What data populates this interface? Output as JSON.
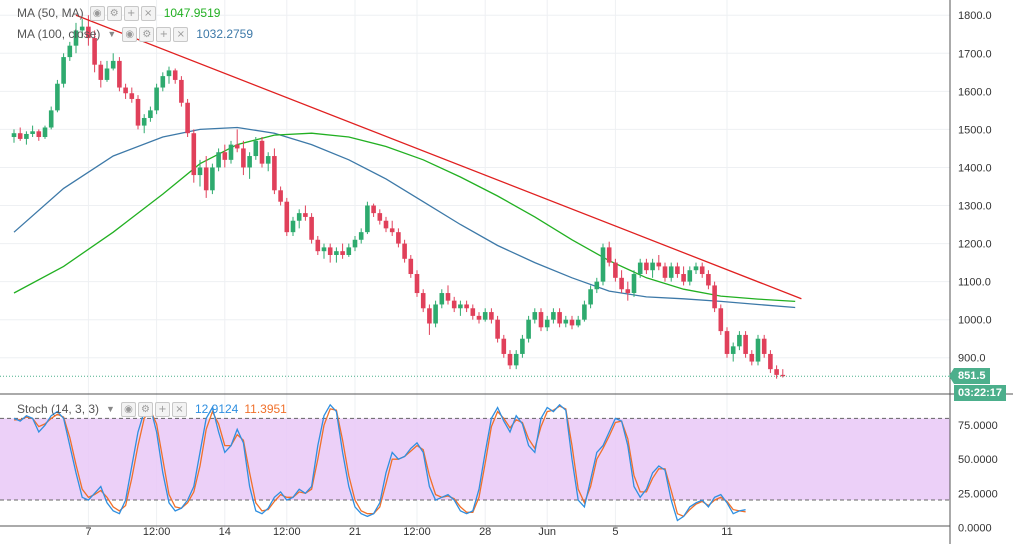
{
  "legend": {
    "ma50": {
      "label": "MA (50, MA)",
      "value": "1047.9519",
      "color": "#22b022"
    },
    "ma100": {
      "label": "MA (100, close)",
      "value": "1032.2759",
      "color": "#3d79a8"
    },
    "stoch": {
      "label": "Stoch (14, 3, 3)",
      "k_value": "12.9124",
      "d_value": "11.3951",
      "k_color": "#2f8fe0",
      "d_color": "#f0702a"
    }
  },
  "price_badge": {
    "value": "851.5",
    "countdown": "03:22:17",
    "color": "#4caf8c"
  },
  "colors": {
    "up": "#2eaa6e",
    "down": "#e0405a",
    "trendline": "#e02020",
    "stoch_band": "#e9c8f7",
    "axis_text": "#333333"
  },
  "chart_data": [
    {
      "type": "candlestick",
      "title": "",
      "ylim": [
        810,
        1840
      ],
      "y_ticks": [
        "1800.0",
        "1700.0",
        "1600.0",
        "1500.0",
        "1400.0",
        "1300.0",
        "1200.0",
        "1100.0",
        "1000.0",
        "900.0"
      ],
      "y_tick_values": [
        1800,
        1700,
        1600,
        1500,
        1400,
        1300,
        1200,
        1100,
        1000,
        900
      ],
      "x_ticks": [
        {
          "label": "7",
          "index": 12
        },
        {
          "label": "12:00",
          "index": 23
        },
        {
          "label": "14",
          "index": 34
        },
        {
          "label": "12:00",
          "index": 44
        },
        {
          "label": "21",
          "index": 55
        },
        {
          "label": "12:00",
          "index": 65
        },
        {
          "label": "28",
          "index": 76
        },
        {
          "label": "Jun",
          "index": 86
        },
        {
          "label": "5",
          "index": 97
        },
        {
          "label": "11",
          "index": 115
        }
      ],
      "last_price": 851.5,
      "candles": [
        [
          1480,
          1500,
          1465,
          1490
        ],
        [
          1490,
          1505,
          1470,
          1475
        ],
        [
          1475,
          1495,
          1460,
          1488
        ],
        [
          1488,
          1510,
          1480,
          1495
        ],
        [
          1495,
          1500,
          1470,
          1480
        ],
        [
          1480,
          1510,
          1475,
          1505
        ],
        [
          1505,
          1560,
          1500,
          1550
        ],
        [
          1550,
          1630,
          1545,
          1620
        ],
        [
          1620,
          1700,
          1610,
          1690
        ],
        [
          1690,
          1730,
          1680,
          1720
        ],
        [
          1720,
          1780,
          1700,
          1760
        ],
        [
          1760,
          1790,
          1740,
          1770
        ],
        [
          1770,
          1800,
          1720,
          1740
        ],
        [
          1740,
          1760,
          1650,
          1670
        ],
        [
          1670,
          1680,
          1610,
          1630
        ],
        [
          1630,
          1680,
          1625,
          1660
        ],
        [
          1660,
          1700,
          1655,
          1680
        ],
        [
          1680,
          1690,
          1600,
          1610
        ],
        [
          1610,
          1620,
          1580,
          1595
        ],
        [
          1595,
          1610,
          1570,
          1580
        ],
        [
          1580,
          1590,
          1500,
          1510
        ],
        [
          1510,
          1540,
          1490,
          1530
        ],
        [
          1530,
          1560,
          1520,
          1550
        ],
        [
          1550,
          1620,
          1540,
          1610
        ],
        [
          1610,
          1650,
          1600,
          1640
        ],
        [
          1640,
          1665,
          1620,
          1655
        ],
        [
          1655,
          1660,
          1620,
          1630
        ],
        [
          1630,
          1640,
          1560,
          1570
        ],
        [
          1570,
          1580,
          1480,
          1490
        ],
        [
          1490,
          1500,
          1360,
          1380
        ],
        [
          1380,
          1420,
          1350,
          1400
        ],
        [
          1400,
          1430,
          1320,
          1340
        ],
        [
          1340,
          1410,
          1330,
          1400
        ],
        [
          1400,
          1450,
          1390,
          1440
        ],
        [
          1440,
          1460,
          1400,
          1420
        ],
        [
          1420,
          1470,
          1410,
          1460
        ],
        [
          1460,
          1500,
          1440,
          1450
        ],
        [
          1450,
          1470,
          1380,
          1400
        ],
        [
          1400,
          1440,
          1370,
          1430
        ],
        [
          1430,
          1480,
          1420,
          1470
        ],
        [
          1470,
          1480,
          1400,
          1410
        ],
        [
          1410,
          1440,
          1390,
          1430
        ],
        [
          1430,
          1450,
          1330,
          1340
        ],
        [
          1340,
          1350,
          1300,
          1310
        ],
        [
          1310,
          1320,
          1220,
          1230
        ],
        [
          1230,
          1270,
          1220,
          1260
        ],
        [
          1260,
          1290,
          1240,
          1280
        ],
        [
          1280,
          1300,
          1260,
          1270
        ],
        [
          1270,
          1280,
          1200,
          1210
        ],
        [
          1210,
          1220,
          1170,
          1180
        ],
        [
          1180,
          1200,
          1160,
          1190
        ],
        [
          1190,
          1200,
          1150,
          1170
        ],
        [
          1170,
          1190,
          1150,
          1180
        ],
        [
          1180,
          1200,
          1160,
          1170
        ],
        [
          1170,
          1200,
          1165,
          1190
        ],
        [
          1190,
          1220,
          1180,
          1210
        ],
        [
          1210,
          1240,
          1200,
          1230
        ],
        [
          1230,
          1310,
          1225,
          1300
        ],
        [
          1300,
          1305,
          1270,
          1280
        ],
        [
          1280,
          1290,
          1250,
          1260
        ],
        [
          1260,
          1270,
          1230,
          1240
        ],
        [
          1240,
          1260,
          1220,
          1230
        ],
        [
          1230,
          1240,
          1190,
          1200
        ],
        [
          1200,
          1210,
          1150,
          1160
        ],
        [
          1160,
          1170,
          1110,
          1120
        ],
        [
          1120,
          1130,
          1060,
          1070
        ],
        [
          1070,
          1080,
          1020,
          1030
        ],
        [
          1030,
          1040,
          960,
          990
        ],
        [
          990,
          1050,
          980,
          1040
        ],
        [
          1040,
          1080,
          1030,
          1070
        ],
        [
          1070,
          1090,
          1040,
          1050
        ],
        [
          1050,
          1060,
          1020,
          1030
        ],
        [
          1030,
          1050,
          1010,
          1040
        ],
        [
          1040,
          1050,
          1020,
          1030
        ],
        [
          1030,
          1040,
          1000,
          1010
        ],
        [
          1010,
          1020,
          990,
          1000
        ],
        [
          1000,
          1030,
          995,
          1020
        ],
        [
          1020,
          1030,
          990,
          1000
        ],
        [
          1000,
          1010,
          940,
          950
        ],
        [
          950,
          960,
          900,
          910
        ],
        [
          910,
          920,
          870,
          880
        ],
        [
          880,
          920,
          870,
          910
        ],
        [
          910,
          960,
          900,
          950
        ],
        [
          950,
          1010,
          940,
          1000
        ],
        [
          1000,
          1030,
          990,
          1020
        ],
        [
          1020,
          1030,
          970,
          980
        ],
        [
          980,
          1010,
          970,
          1000
        ],
        [
          1000,
          1030,
          990,
          1020
        ],
        [
          1020,
          1030,
          980,
          990
        ],
        [
          990,
          1010,
          980,
          1000
        ],
        [
          1000,
          1010,
          975,
          985
        ],
        [
          985,
          1010,
          980,
          1000
        ],
        [
          1000,
          1050,
          995,
          1040
        ],
        [
          1040,
          1090,
          1030,
          1080
        ],
        [
          1080,
          1110,
          1070,
          1100
        ],
        [
          1100,
          1200,
          1090,
          1190
        ],
        [
          1190,
          1205,
          1140,
          1150
        ],
        [
          1150,
          1160,
          1100,
          1110
        ],
        [
          1110,
          1130,
          1070,
          1080
        ],
        [
          1080,
          1100,
          1050,
          1070
        ],
        [
          1070,
          1130,
          1060,
          1120
        ],
        [
          1120,
          1160,
          1110,
          1150
        ],
        [
          1150,
          1160,
          1120,
          1130
        ],
        [
          1130,
          1160,
          1110,
          1150
        ],
        [
          1150,
          1170,
          1130,
          1140
        ],
        [
          1140,
          1150,
          1100,
          1110
        ],
        [
          1110,
          1150,
          1100,
          1140
        ],
        [
          1140,
          1150,
          1110,
          1120
        ],
        [
          1120,
          1140,
          1090,
          1100
        ],
        [
          1100,
          1140,
          1090,
          1130
        ],
        [
          1130,
          1150,
          1120,
          1140
        ],
        [
          1140,
          1150,
          1110,
          1120
        ],
        [
          1120,
          1130,
          1080,
          1090
        ],
        [
          1090,
          1100,
          1020,
          1030
        ],
        [
          1030,
          1040,
          960,
          970
        ],
        [
          970,
          980,
          900,
          910
        ],
        [
          910,
          940,
          890,
          930
        ],
        [
          930,
          970,
          920,
          960
        ],
        [
          960,
          970,
          900,
          910
        ],
        [
          910,
          920,
          880,
          890
        ],
        [
          890,
          960,
          880,
          950
        ],
        [
          950,
          960,
          900,
          910
        ],
        [
          910,
          920,
          860,
          870
        ],
        [
          870,
          880,
          845,
          855
        ],
        [
          855,
          870,
          848,
          851.5
        ]
      ],
      "ma50_line": [
        [
          0,
          1070
        ],
        [
          8,
          1140
        ],
        [
          16,
          1230
        ],
        [
          24,
          1330
        ],
        [
          30,
          1410
        ],
        [
          36,
          1460
        ],
        [
          42,
          1485
        ],
        [
          48,
          1490
        ],
        [
          54,
          1480
        ],
        [
          60,
          1455
        ],
        [
          66,
          1420
        ],
        [
          72,
          1375
        ],
        [
          78,
          1325
        ],
        [
          84,
          1270
        ],
        [
          90,
          1210
        ],
        [
          96,
          1155
        ],
        [
          102,
          1110
        ],
        [
          108,
          1080
        ],
        [
          114,
          1062
        ],
        [
          120,
          1054
        ],
        [
          126,
          1048
        ]
      ],
      "ma100_line": [
        [
          0,
          1230
        ],
        [
          8,
          1345
        ],
        [
          16,
          1430
        ],
        [
          24,
          1480
        ],
        [
          30,
          1500
        ],
        [
          36,
          1505
        ],
        [
          42,
          1490
        ],
        [
          48,
          1460
        ],
        [
          54,
          1420
        ],
        [
          60,
          1370
        ],
        [
          66,
          1310
        ],
        [
          72,
          1250
        ],
        [
          78,
          1195
        ],
        [
          84,
          1150
        ],
        [
          90,
          1110
        ],
        [
          96,
          1075
        ],
        [
          102,
          1060
        ],
        [
          108,
          1055
        ],
        [
          114,
          1048
        ],
        [
          120,
          1040
        ],
        [
          126,
          1032
        ]
      ],
      "trendline": [
        [
          10,
          1800
        ],
        [
          127,
          1055
        ]
      ]
    },
    {
      "type": "line",
      "title": "",
      "ylim": [
        -2,
        95
      ],
      "y_ticks": [
        "75.0000",
        "50.0000",
        "25.0000",
        "0.0000"
      ],
      "y_tick_values": [
        75,
        50,
        25,
        0
      ],
      "bands": [
        20,
        80
      ],
      "series": [
        {
          "values": [
            80,
            78,
            82,
            80,
            70,
            75,
            82,
            85,
            80,
            60,
            40,
            22,
            20,
            25,
            30,
            18,
            12,
            10,
            20,
            45,
            70,
            85,
            88,
            70,
            40,
            18,
            12,
            14,
            20,
            30,
            55,
            80,
            88,
            70,
            55,
            60,
            72,
            62,
            30,
            12,
            10,
            14,
            22,
            26,
            20,
            22,
            28,
            25,
            30,
            60,
            82,
            90,
            85,
            55,
            30,
            15,
            10,
            8,
            10,
            18,
            40,
            55,
            50,
            52,
            58,
            62,
            55,
            30,
            20,
            22,
            24,
            20,
            12,
            10,
            12,
            28,
            55,
            80,
            88,
            78,
            70,
            82,
            76,
            60,
            55,
            80,
            88,
            85,
            90,
            86,
            50,
            20,
            15,
            35,
            55,
            60,
            70,
            80,
            78,
            60,
            30,
            22,
            28,
            40,
            45,
            42,
            20,
            5,
            8,
            15,
            18,
            20,
            15,
            22,
            24,
            18,
            10,
            12,
            12.9
          ]
        },
        {
          "values": [
            79,
            79,
            81,
            80,
            74,
            76,
            80,
            83,
            81,
            66,
            46,
            28,
            22,
            24,
            27,
            22,
            15,
            12,
            16,
            36,
            60,
            80,
            86,
            76,
            50,
            24,
            15,
            14,
            18,
            26,
            45,
            72,
            85,
            76,
            60,
            60,
            68,
            64,
            40,
            18,
            12,
            13,
            19,
            24,
            22,
            22,
            26,
            25,
            28,
            50,
            75,
            87,
            86,
            64,
            38,
            20,
            12,
            10,
            10,
            15,
            32,
            50,
            50,
            52,
            56,
            60,
            57,
            38,
            24,
            22,
            23,
            21,
            15,
            11,
            11,
            22,
            47,
            74,
            85,
            80,
            73,
            79,
            77,
            65,
            58,
            74,
            85,
            86,
            89,
            87,
            60,
            28,
            18,
            30,
            50,
            58,
            67,
            77,
            78,
            65,
            38,
            26,
            26,
            36,
            43,
            43,
            27,
            10,
            8,
            13,
            17,
            19,
            16,
            20,
            22,
            19,
            13,
            12,
            11.4
          ]
        }
      ]
    }
  ]
}
